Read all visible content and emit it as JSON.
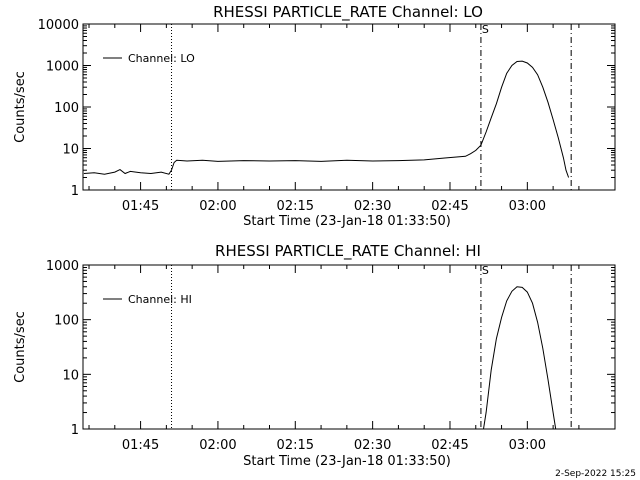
{
  "footer_timestamp": "2-Sep-2022 15:25",
  "chart_data": [
    {
      "type": "line",
      "title": "RHESSI PARTICLE_RATE Channel: LO",
      "xlabel": "Start Time (23-Jan-18 01:33:50)",
      "ylabel": "Counts/sec",
      "y_scale": "log",
      "ylim": [
        1,
        10000
      ],
      "y_ticks": [
        "1",
        "10",
        "100",
        "1000",
        "10000"
      ],
      "xlim": [
        "01:33:50",
        "03:17:00"
      ],
      "x_ticks": [
        "01:45",
        "02:00",
        "02:15",
        "02:30",
        "02:45",
        "03:00"
      ],
      "legend": {
        "placement": "top-left",
        "entries": [
          "Channel: LO"
        ]
      },
      "markers": [
        {
          "time": "01:51:00",
          "style": "dotted",
          "label": ""
        },
        {
          "time": "02:51:00",
          "style": "dash-dot",
          "label": "S"
        },
        {
          "time": "03:08:30",
          "style": "dash-dot",
          "label": ""
        }
      ],
      "series": [
        {
          "name": "Channel: LO",
          "x": [
            "01:34:00",
            "01:36:00",
            "01:38:00",
            "01:40:00",
            "01:41:00",
            "01:42:00",
            "01:43:00",
            "01:45:00",
            "01:47:00",
            "01:49:00",
            "01:50:30",
            "01:51:00",
            "01:51:30",
            "01:52:00",
            "01:54:00",
            "01:57:00",
            "02:00:00",
            "02:05:00",
            "02:10:00",
            "02:15:00",
            "02:20:00",
            "02:25:00",
            "02:30:00",
            "02:35:00",
            "02:40:00",
            "02:44:00",
            "02:46:00",
            "02:48:00",
            "02:49:00",
            "02:50:00",
            "02:51:00",
            "02:52:00",
            "02:53:00",
            "02:54:00",
            "02:55:00",
            "02:56:00",
            "02:57:00",
            "02:58:00",
            "02:59:00",
            "03:00:00",
            "03:01:00",
            "03:02:00",
            "03:03:00",
            "03:04:00",
            "03:05:00",
            "03:06:00",
            "03:07:00",
            "03:07:30",
            "03:08:00"
          ],
          "values": [
            2.5,
            2.6,
            2.4,
            2.7,
            3.1,
            2.5,
            2.8,
            2.6,
            2.5,
            2.7,
            2.4,
            3.0,
            4.6,
            5.2,
            5.0,
            5.2,
            4.9,
            5.1,
            5.0,
            5.1,
            4.9,
            5.2,
            5.0,
            5.1,
            5.3,
            5.9,
            6.2,
            6.5,
            7.5,
            9.0,
            12,
            25,
            55,
            120,
            300,
            650,
            1000,
            1250,
            1280,
            1150,
            900,
            600,
            300,
            130,
            50,
            18,
            6,
            3,
            2
          ]
        }
      ]
    },
    {
      "type": "line",
      "title": "RHESSI PARTICLE_RATE Channel: HI",
      "xlabel": "Start Time (23-Jan-18 01:33:50)",
      "ylabel": "Counts/sec",
      "y_scale": "log",
      "ylim": [
        1,
        1000
      ],
      "y_ticks": [
        "1",
        "10",
        "100",
        "1000"
      ],
      "xlim": [
        "01:33:50",
        "03:17:00"
      ],
      "x_ticks": [
        "01:45",
        "02:00",
        "02:15",
        "02:30",
        "02:45",
        "03:00"
      ],
      "legend": {
        "placement": "top-left",
        "entries": [
          "Channel: HI"
        ]
      },
      "markers": [
        {
          "time": "01:51:00",
          "style": "dotted",
          "label": ""
        },
        {
          "time": "02:51:00",
          "style": "dash-dot",
          "label": "S"
        },
        {
          "time": "03:08:30",
          "style": "dash-dot",
          "label": ""
        }
      ],
      "series": [
        {
          "name": "Channel: HI",
          "x": [
            "02:51:30",
            "02:52:00",
            "02:53:00",
            "02:54:00",
            "02:55:00",
            "02:56:00",
            "02:57:00",
            "02:58:00",
            "02:59:00",
            "03:00:00",
            "03:01:00",
            "03:02:00",
            "03:03:00",
            "03:04:00",
            "03:05:00",
            "03:05:30"
          ],
          "values": [
            1,
            2,
            12,
            45,
            110,
            220,
            330,
            400,
            390,
            320,
            200,
            90,
            30,
            8,
            2,
            1
          ]
        }
      ]
    }
  ]
}
